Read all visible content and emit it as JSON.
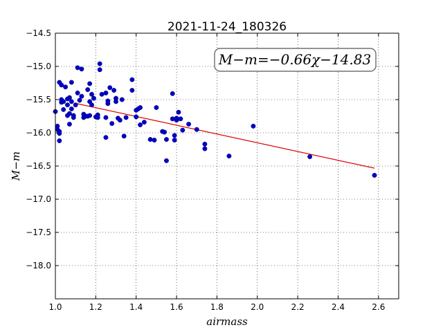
{
  "chart_data": {
    "type": "scatter",
    "title": "2021-11-24_180326",
    "xlabel": "airmass",
    "ylabel": "M−m",
    "xlim": [
      1.0,
      2.7
    ],
    "ylim": [
      -14.5,
      -18.5
    ],
    "y_inverted": true,
    "grid": true,
    "grid_style": "dotted",
    "x_ticks": [
      1.0,
      1.2,
      1.4,
      1.6,
      1.8,
      2.0,
      2.2,
      2.4,
      2.6
    ],
    "x_tick_labels": [
      "1.0",
      "1.2",
      "1.4",
      "1.6",
      "1.8",
      "2.0",
      "2.2",
      "2.4",
      "2.6"
    ],
    "y_ticks": [
      -14.5,
      -15.0,
      -15.5,
      -16.0,
      -16.5,
      -17.0,
      -17.5,
      -18.0
    ],
    "y_tick_labels": [
      "−14.5",
      "−15.0",
      "−15.5",
      "−16.0",
      "−16.5",
      "−17.0",
      "−17.5",
      "−18.0"
    ],
    "point_color": "#0000cc",
    "fit_color": "#e00000",
    "annotation": "M−m=−0.66χ−14.83",
    "fit": {
      "slope": -0.66,
      "intercept": -14.83,
      "x_range": [
        1.1,
        2.58
      ]
    },
    "points": [
      [
        1.0,
        -15.68
      ],
      [
        1.01,
        -15.9
      ],
      [
        1.01,
        -15.95
      ],
      [
        1.02,
        -15.24
      ],
      [
        1.02,
        -15.98
      ],
      [
        1.02,
        -16.01
      ],
      [
        1.03,
        -15.28
      ],
      [
        1.03,
        -15.5
      ],
      [
        1.03,
        -15.54
      ],
      [
        1.02,
        -16.12
      ],
      [
        1.04,
        -15.53
      ],
      [
        1.04,
        -15.65
      ],
      [
        1.05,
        -15.31
      ],
      [
        1.06,
        -15.58
      ],
      [
        1.06,
        -15.49
      ],
      [
        1.06,
        -15.74
      ],
      [
        1.07,
        -15.47
      ],
      [
        1.07,
        -15.71
      ],
      [
        1.07,
        -15.87
      ],
      [
        1.08,
        -15.24
      ],
      [
        1.08,
        -15.53
      ],
      [
        1.08,
        -15.64
      ],
      [
        1.09,
        -15.74
      ],
      [
        1.09,
        -15.77
      ],
      [
        1.1,
        -15.58
      ],
      [
        1.11,
        -15.02
      ],
      [
        1.11,
        -15.4
      ],
      [
        1.12,
        -15.51
      ],
      [
        1.13,
        -15.04
      ],
      [
        1.13,
        -15.45
      ],
      [
        1.14,
        -15.72
      ],
      [
        1.14,
        -15.77
      ],
      [
        1.15,
        -15.75
      ],
      [
        1.16,
        -15.35
      ],
      [
        1.16,
        -15.75
      ],
      [
        1.17,
        -15.26
      ],
      [
        1.17,
        -15.53
      ],
      [
        1.17,
        -15.74
      ],
      [
        1.18,
        -15.42
      ],
      [
        1.18,
        -15.58
      ],
      [
        1.19,
        -15.48
      ],
      [
        1.2,
        -15.76
      ],
      [
        1.21,
        -15.73
      ],
      [
        1.21,
        -15.77
      ],
      [
        1.22,
        -14.96
      ],
      [
        1.22,
        -15.05
      ],
      [
        1.23,
        -15.42
      ],
      [
        1.25,
        -15.4
      ],
      [
        1.25,
        -15.77
      ],
      [
        1.25,
        -16.07
      ],
      [
        1.26,
        -15.56
      ],
      [
        1.26,
        -15.52
      ],
      [
        1.27,
        -15.32
      ],
      [
        1.28,
        -15.86
      ],
      [
        1.29,
        -15.36
      ],
      [
        1.3,
        -15.53
      ],
      [
        1.3,
        -15.48
      ],
      [
        1.31,
        -15.78
      ],
      [
        1.32,
        -15.81
      ],
      [
        1.33,
        -15.5
      ],
      [
        1.34,
        -16.05
      ],
      [
        1.35,
        -15.77
      ],
      [
        1.38,
        -15.2
      ],
      [
        1.38,
        -15.36
      ],
      [
        1.4,
        -15.76
      ],
      [
        1.4,
        -15.66
      ],
      [
        1.41,
        -15.64
      ],
      [
        1.42,
        -15.62
      ],
      [
        1.42,
        -15.88
      ],
      [
        1.44,
        -15.84
      ],
      [
        1.47,
        -16.1
      ],
      [
        1.49,
        -16.11
      ],
      [
        1.5,
        -15.62
      ],
      [
        1.53,
        -15.98
      ],
      [
        1.54,
        -15.99
      ],
      [
        1.55,
        -16.1
      ],
      [
        1.55,
        -16.42
      ],
      [
        1.58,
        -15.79
      ],
      [
        1.58,
        -15.41
      ],
      [
        1.59,
        -16.11
      ],
      [
        1.59,
        -16.04
      ],
      [
        1.6,
        -15.81
      ],
      [
        1.6,
        -15.78
      ],
      [
        1.61,
        -15.69
      ],
      [
        1.62,
        -15.79
      ],
      [
        1.63,
        -15.96
      ],
      [
        1.66,
        -15.87
      ],
      [
        1.7,
        -15.95
      ],
      [
        1.74,
        -16.17
      ],
      [
        1.74,
        -16.24
      ],
      [
        1.86,
        -16.35
      ],
      [
        1.98,
        -15.9
      ],
      [
        2.26,
        -16.36
      ],
      [
        2.58,
        -16.64
      ]
    ]
  }
}
